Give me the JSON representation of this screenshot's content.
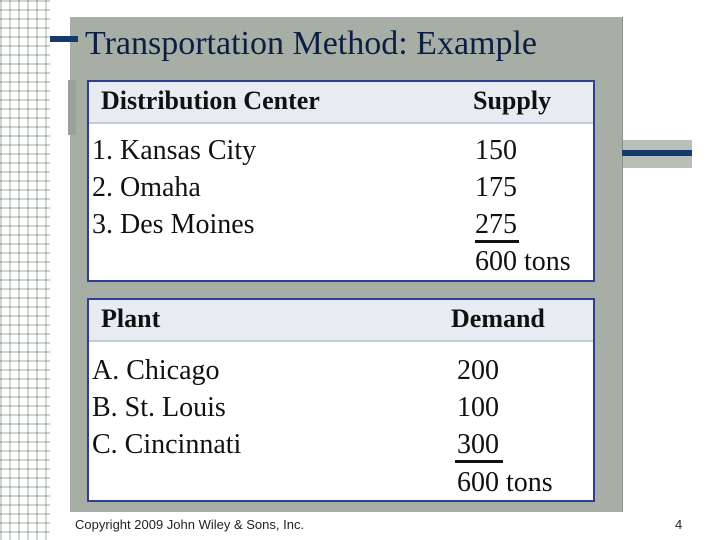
{
  "slide": {
    "title": "Transportation Method: Example",
    "footer": "Copyright 2009 John Wiley & Sons, Inc.",
    "page_number": "4"
  },
  "supply_table": {
    "headers": [
      "Distribution Center",
      "Supply"
    ],
    "rows": [
      {
        "name": "1. Kansas City",
        "value": "150"
      },
      {
        "name": "2. Omaha",
        "value": "175"
      },
      {
        "name": "3. Des Moines",
        "value": "275"
      }
    ],
    "total": "600 tons"
  },
  "demand_table": {
    "headers": [
      "Plant",
      "Demand"
    ],
    "rows": [
      {
        "name": "A. Chicago",
        "value": "200"
      },
      {
        "name": "B. St. Louis",
        "value": "100"
      },
      {
        "name": "C. Cincinnati",
        "value": "300"
      }
    ],
    "total": "600 tons"
  },
  "colors": {
    "title": "#0b1f44",
    "panel": "#a7aea6",
    "table_border": "#2d3f8f",
    "accent_bar": "#163a6b"
  }
}
